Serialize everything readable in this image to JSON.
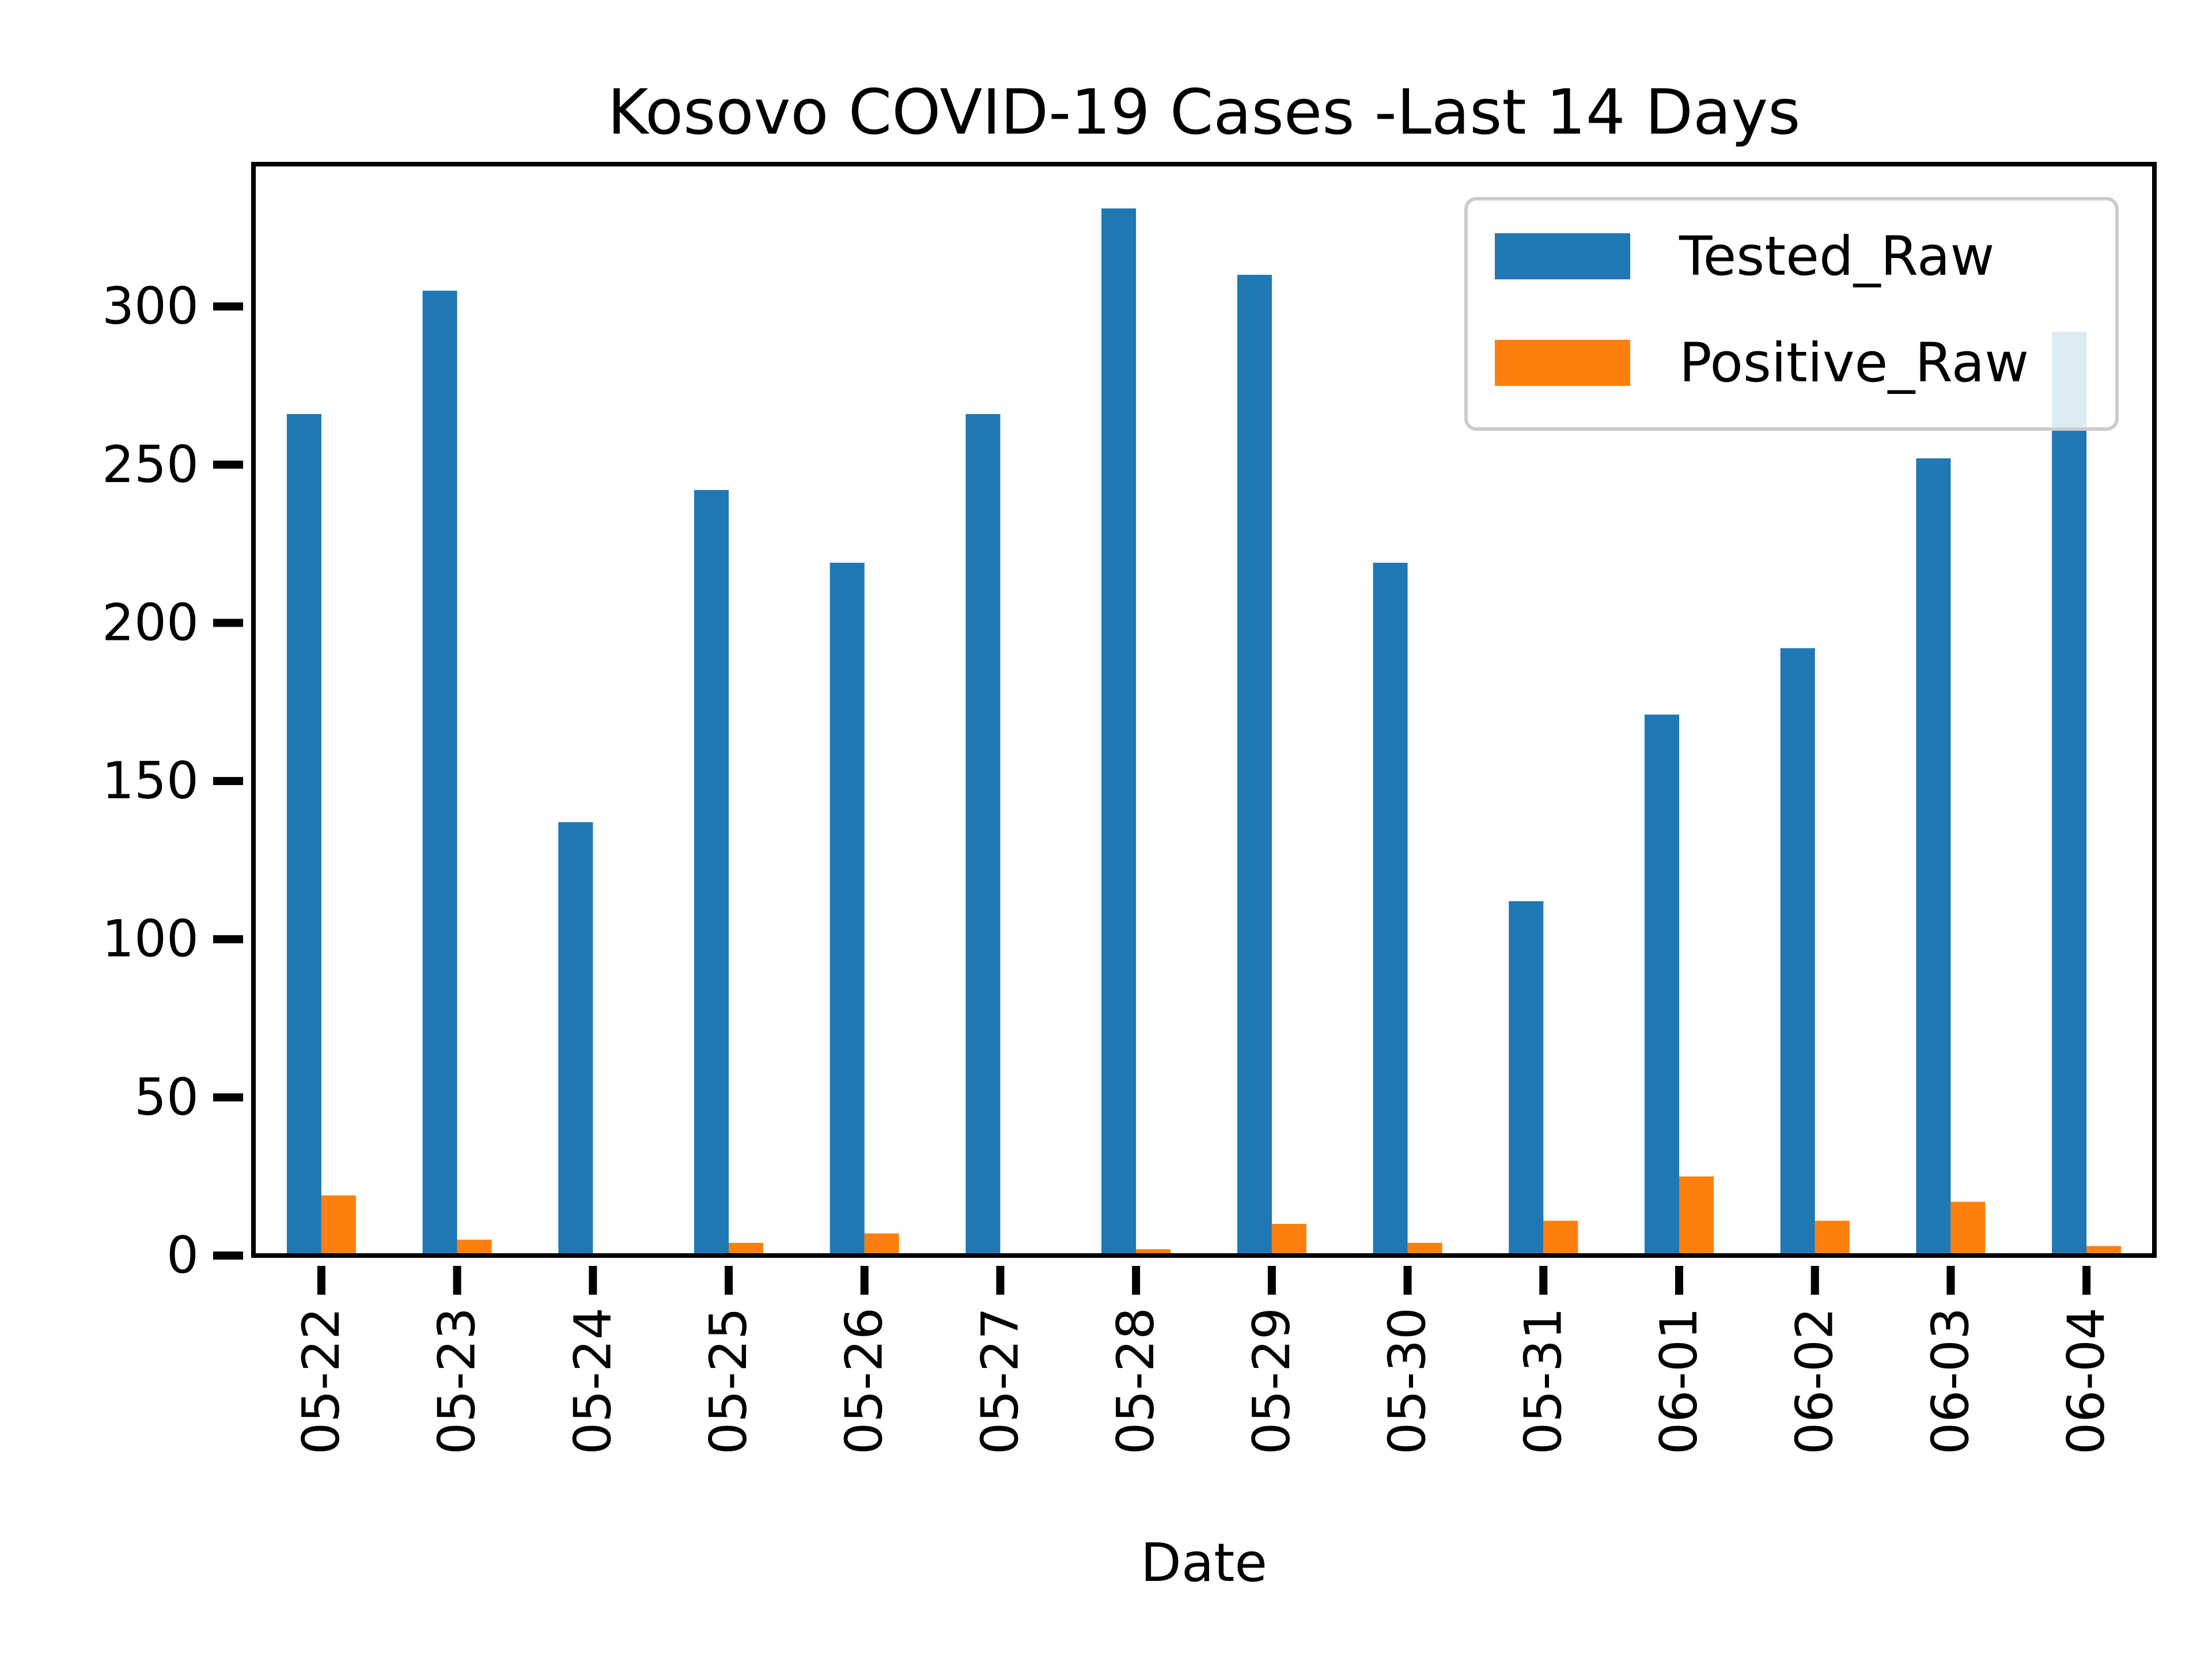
{
  "chart_data": {
    "type": "bar",
    "title": "Kosovo COVID-19 Cases -Last 14 Days",
    "xlabel": "Date",
    "ylabel": "",
    "categories": [
      "05-22",
      "05-23",
      "05-24",
      "05-25",
      "05-26",
      "05-27",
      "05-28",
      "05-29",
      "05-30",
      "05-31",
      "06-01",
      "06-02",
      "06-03",
      "06-04"
    ],
    "series": [
      {
        "name": "Tested_Raw",
        "color": "#1f77b4",
        "values": [
          266,
          305,
          137,
          242,
          219,
          266,
          331,
          310,
          219,
          112,
          171,
          192,
          252,
          292
        ]
      },
      {
        "name": "Positive_Raw",
        "color": "#ff7f0e",
        "values": [
          19,
          5,
          0,
          4,
          7,
          0,
          2,
          10,
          4,
          11,
          25,
          11,
          17,
          3
        ]
      }
    ],
    "ylim": [
      0,
      345
    ],
    "yticks": [
      0,
      50,
      100,
      150,
      200,
      250,
      300
    ],
    "grid": false,
    "legend_position": "top-right"
  }
}
